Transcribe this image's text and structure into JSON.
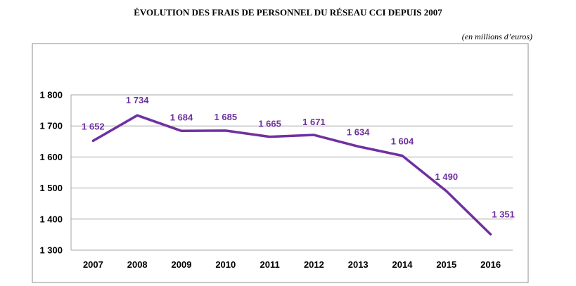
{
  "chart_data": {
    "type": "line",
    "title": "ÉVOLUTION DES FRAIS DE PERSONNEL DU RÉSEAU CCI DEPUIS 2007",
    "unit": "(en millions d’euros)",
    "categories": [
      "2007",
      "2008",
      "2009",
      "2010",
      "2011",
      "2012",
      "2013",
      "2014",
      "2015",
      "2016"
    ],
    "values": [
      1652,
      1734,
      1684,
      1685,
      1665,
      1671,
      1634,
      1604,
      1490,
      1351
    ],
    "value_labels": [
      "1 652",
      "1 734",
      "1 684",
      "1 685",
      "1 665",
      "1 671",
      "1 634",
      "1 604",
      "1 490",
      "1 351"
    ],
    "y_ticks": [
      1300,
      1400,
      1500,
      1600,
      1700,
      1800
    ],
    "y_tick_labels": [
      "1 300",
      "1 400",
      "1 500",
      "1 600",
      "1 700",
      "1 800"
    ],
    "ylim": [
      1300,
      1800
    ],
    "grid": true,
    "line_color": "#7030a0",
    "label_color": "#7030a0"
  }
}
